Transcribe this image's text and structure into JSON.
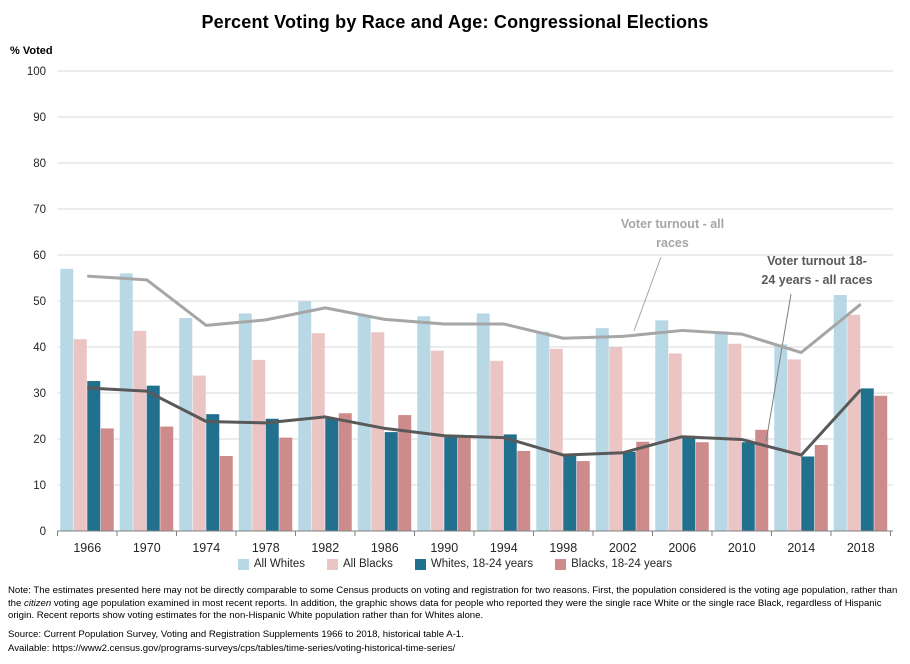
{
  "title": "Percent Voting by Race and Age:  Congressional Elections",
  "y_axis_label": "% Voted",
  "legend": [
    {
      "label": "All Whites",
      "color": "#b9d8e6"
    },
    {
      "label": "All Blacks",
      "color": "#ebc4c4"
    },
    {
      "label": "Whites, 18-24 years",
      "color": "#20708e"
    },
    {
      "label": "Blacks, 18-24 years",
      "color": "#cd8b8b"
    }
  ],
  "annotations": [
    {
      "lines": [
        "Voter turnout - all",
        "races"
      ],
      "color": "#a6a6a6"
    },
    {
      "lines": [
        "Voter turnout 18-",
        "24 years - all races"
      ],
      "color": "#595959"
    }
  ],
  "notes": {
    "before_italic": "Note: The estimates presented here may not be directly comparable to some Census products on voting and registration for two reasons. First, the population considered is the voting age population, rather than the ",
    "italic": "citizen",
    "after_italic": " voting age population examined in most recent reports. In addition, the graphic shows data for people who reported they were the single race White or the single race Black, regardless of Hispanic origin. Recent reports show voting estimates for the non-Hispanic White population rather than for Whites alone."
  },
  "source": "Source: Current Population Survey, Voting and Registration Supplements 1966 to 2018, historical table A-1.",
  "available": "Available: https://www2.census.gov/programs-surveys/cps/tables/time-series/voting-historical-time-series/",
  "colors": {
    "gridline": "#d9d9d9",
    "axis": "#808080",
    "tick_text": "#262626"
  },
  "chart_data": {
    "type": "bar",
    "title": "Percent Voting by Race and Age:  Congressional Elections",
    "xlabel": "",
    "ylabel": "% Voted",
    "ylim": [
      0,
      100
    ],
    "yticks": [
      0,
      10,
      20,
      30,
      40,
      50,
      60,
      70,
      80,
      90,
      100
    ],
    "grid": true,
    "legend_position": "bottom",
    "categories": [
      "1966",
      "1970",
      "1974",
      "1978",
      "1982",
      "1986",
      "1990",
      "1994",
      "1998",
      "2002",
      "2006",
      "2010",
      "2014",
      "2018"
    ],
    "bar_series": [
      {
        "name": "All Whites",
        "color": "#b9d8e6",
        "values": [
          57.0,
          56.0,
          46.3,
          47.3,
          49.9,
          47.0,
          46.7,
          47.3,
          43.3,
          44.1,
          45.8,
          43.4,
          40.6,
          51.3
        ]
      },
      {
        "name": "All Blacks",
        "color": "#ebc4c4",
        "values": [
          41.7,
          43.5,
          33.8,
          37.2,
          43.0,
          43.2,
          39.2,
          37.0,
          39.6,
          40.0,
          38.6,
          40.7,
          37.3,
          47.0
        ]
      },
      {
        "name": "Whites, 18-24 years",
        "color": "#20708e",
        "values": [
          32.6,
          31.6,
          25.4,
          24.4,
          24.5,
          21.5,
          20.4,
          21.0,
          16.8,
          17.2,
          20.7,
          19.3,
          16.2,
          31.0
        ]
      },
      {
        "name": "Blacks, 18-24 years",
        "color": "#cd8b8b",
        "values": [
          22.3,
          22.7,
          16.3,
          20.3,
          25.6,
          25.2,
          20.5,
          17.4,
          15.2,
          19.4,
          19.3,
          22.0,
          18.7,
          29.4
        ]
      }
    ],
    "line_series": [
      {
        "name": "Voter turnout - all races",
        "color": "#a6a6a6",
        "values": [
          55.4,
          54.6,
          44.7,
          45.9,
          48.5,
          46.0,
          45.0,
          45.0,
          41.9,
          42.3,
          43.6,
          42.8,
          38.8,
          49.3
        ]
      },
      {
        "name": "Voter turnout 18-24 years - all races",
        "color": "#595959",
        "values": [
          31.1,
          30.4,
          23.8,
          23.5,
          24.8,
          22.3,
          20.7,
          20.3,
          16.5,
          17.0,
          20.5,
          19.9,
          16.5,
          30.7
        ]
      }
    ]
  }
}
